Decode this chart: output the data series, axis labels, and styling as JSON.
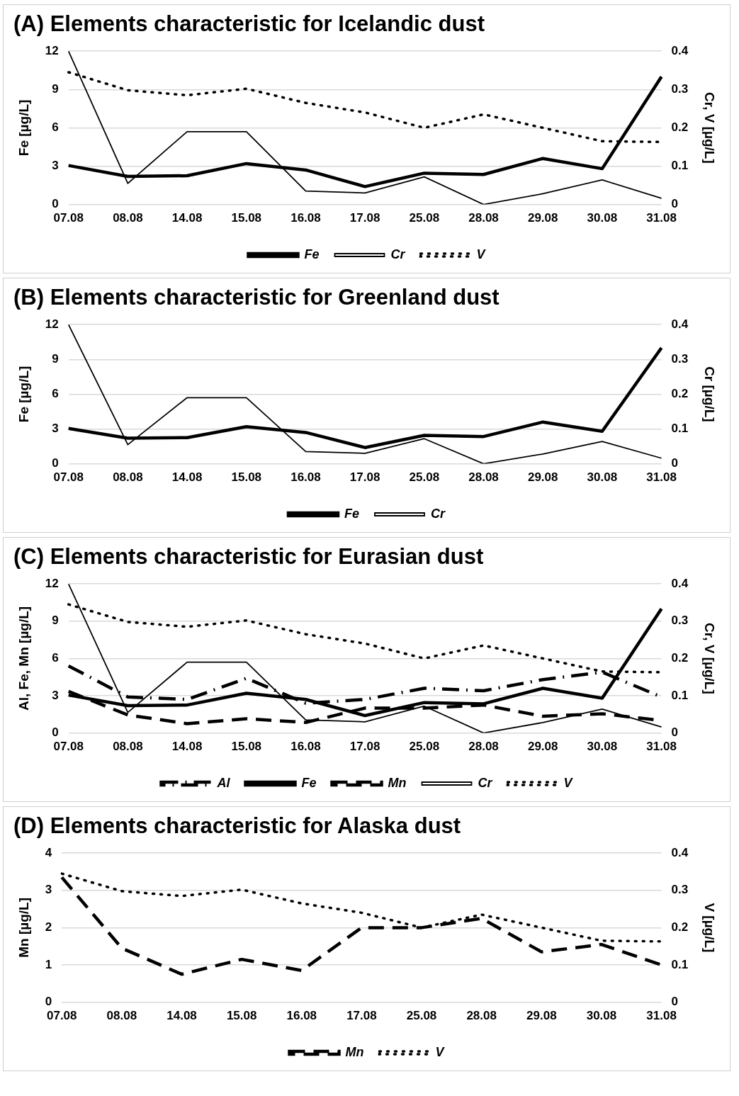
{
  "chart_data": [
    {
      "type": "line",
      "title": "(A) Elements characteristic for Icelandic dust",
      "ylabel": "Fe [µg/L]",
      "y2label": "Cr, V [µg/L]",
      "categories": [
        "07.08",
        "08.08",
        "14.08",
        "15.08",
        "16.08",
        "17.08",
        "25.08",
        "28.08",
        "29.08",
        "30.08",
        "31.08"
      ],
      "series": [
        {
          "name": "Fe",
          "color": "#000000",
          "line_style": "solid",
          "values": [
            3.05,
            2.2,
            2.25,
            3.2,
            2.7,
            1.4,
            2.45,
            2.35,
            3.6,
            2.8,
            10
          ]
        },
        {
          "name": "Cr",
          "color": "#000000",
          "line_style": "solid",
          "axis": "y2",
          "values": [
            0.4,
            0.055,
            0.19,
            0.19,
            0.035,
            0.03,
            0.072,
            0.0,
            0.028,
            0.064,
            0.016
          ]
        },
        {
          "name": "V",
          "color": "#000000",
          "line_style": "dotted",
          "axis": "y2",
          "values": [
            0.345,
            0.298,
            0.285,
            0.302,
            0.265,
            0.24,
            0.2,
            0.235,
            0.2,
            0.165,
            0.163
          ]
        }
      ],
      "ylim": [
        0,
        12
      ],
      "yticks": [
        0,
        3,
        6,
        9,
        12
      ],
      "y2lim": [
        0,
        0.4
      ],
      "y2ticks": [
        0,
        0.1,
        0.2,
        0.3,
        0.4
      ],
      "grid": "y",
      "legend": "bottom",
      "marker": "none"
    },
    {
      "type": "line",
      "title": "(B) Elements characteristic for Greenland dust",
      "ylabel": "Fe [µg/L]",
      "y2label": "Cr [µg/L]",
      "categories": [
        "07.08",
        "08.08",
        "14.08",
        "15.08",
        "16.08",
        "17.08",
        "25.08",
        "28.08",
        "29.08",
        "30.08",
        "31.08"
      ],
      "series": [
        {
          "name": "Fe",
          "color": "#000000",
          "line_style": "solid",
          "values": [
            3.05,
            2.2,
            2.25,
            3.2,
            2.7,
            1.4,
            2.45,
            2.35,
            3.6,
            2.8,
            10
          ]
        },
        {
          "name": "Cr",
          "color": "#000000",
          "line_style": "solid",
          "axis": "y2",
          "values": [
            0.4,
            0.055,
            0.19,
            0.19,
            0.035,
            0.03,
            0.072,
            0.0,
            0.028,
            0.064,
            0.016
          ]
        }
      ],
      "ylim": [
        0,
        12
      ],
      "yticks": [
        0,
        3,
        6,
        9,
        12
      ],
      "y2lim": [
        0,
        0.4
      ],
      "y2ticks": [
        0,
        0.1,
        0.2,
        0.3,
        0.4
      ],
      "grid": "y",
      "legend": "bottom",
      "marker": "none"
    },
    {
      "type": "line",
      "title": "(C) Elements characteristic for Eurasian dust",
      "ylabel": "Al, Fe, Mn [µg/L]",
      "y2label": "Cr, V [µg/L]",
      "categories": [
        "07.08",
        "08.08",
        "14.08",
        "15.08",
        "16.08",
        "17.08",
        "25.08",
        "28.08",
        "29.08",
        "30.08",
        "31.08"
      ],
      "series": [
        {
          "name": "Al",
          "color": "#000000",
          "line_style": "dashdot",
          "values": [
            5.4,
            2.9,
            2.7,
            4.4,
            2.4,
            2.7,
            3.6,
            3.4,
            4.3,
            4.9,
            2.9
          ]
        },
        {
          "name": "Fe",
          "color": "#000000",
          "line_style": "solid",
          "values": [
            3.05,
            2.2,
            2.25,
            3.2,
            2.7,
            1.4,
            2.45,
            2.35,
            3.6,
            2.8,
            10
          ]
        },
        {
          "name": "Mn",
          "color": "#000000",
          "line_style": "dashed",
          "values": [
            3.35,
            1.45,
            0.75,
            1.15,
            0.85,
            2.0,
            2.0,
            2.25,
            1.35,
            1.55,
            1.0
          ]
        },
        {
          "name": "Cr",
          "color": "#000000",
          "line_style": "solid",
          "axis": "y2",
          "values": [
            0.4,
            0.055,
            0.19,
            0.19,
            0.035,
            0.03,
            0.072,
            0.0,
            0.028,
            0.064,
            0.016
          ]
        },
        {
          "name": "V",
          "color": "#000000",
          "line_style": "dotted",
          "axis": "y2",
          "values": [
            0.345,
            0.298,
            0.285,
            0.302,
            0.265,
            0.24,
            0.2,
            0.235,
            0.2,
            0.165,
            0.163
          ]
        }
      ],
      "ylim": [
        0,
        12
      ],
      "yticks": [
        0,
        3,
        6,
        9,
        12
      ],
      "y2lim": [
        0,
        0.4
      ],
      "y2ticks": [
        0,
        0.1,
        0.2,
        0.3,
        0.4
      ],
      "grid": "y",
      "legend": "bottom",
      "marker": "none"
    },
    {
      "type": "line",
      "title": "(D) Elements characteristic for Alaska dust",
      "ylabel": "Mn [µg/L]",
      "y2label": "V [µg/L]",
      "categories": [
        "07.08",
        "08.08",
        "14.08",
        "15.08",
        "16.08",
        "17.08",
        "25.08",
        "28.08",
        "29.08",
        "30.08",
        "31.08"
      ],
      "series": [
        {
          "name": "Mn",
          "color": "#000000",
          "line_style": "dashed",
          "values": [
            3.35,
            1.45,
            0.75,
            1.15,
            0.85,
            2.0,
            2.0,
            2.25,
            1.35,
            1.55,
            1.0
          ]
        },
        {
          "name": "V",
          "color": "#000000",
          "line_style": "dotted",
          "axis": "y2",
          "values": [
            0.345,
            0.298,
            0.285,
            0.302,
            0.265,
            0.24,
            0.2,
            0.235,
            0.2,
            0.165,
            0.163
          ]
        }
      ],
      "ylim": [
        0,
        4
      ],
      "yticks": [
        0,
        1,
        2,
        3,
        4
      ],
      "y2lim": [
        0,
        0.4
      ],
      "y2ticks": [
        0,
        0.1,
        0.2,
        0.3,
        0.4
      ],
      "grid": "y",
      "legend": "bottom",
      "marker": "none"
    }
  ]
}
